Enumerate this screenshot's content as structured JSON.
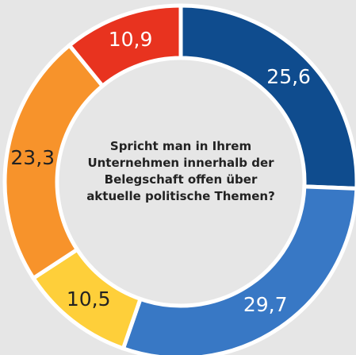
{
  "chart_data": {
    "type": "donut",
    "title": "Spricht man in Ihrem Unternehmen innerhalb der Belegschaft offen über aktuelle politische Themen?",
    "values": [
      25.6,
      29.7,
      10.5,
      23.3,
      10.9
    ],
    "value_labels": [
      "25,6",
      "29,7",
      "10,5",
      "23,3",
      "10,9"
    ],
    "colors": [
      "#0f4c8e",
      "#3878c5",
      "#fecf3a",
      "#f7932b",
      "#e8331f"
    ]
  }
}
